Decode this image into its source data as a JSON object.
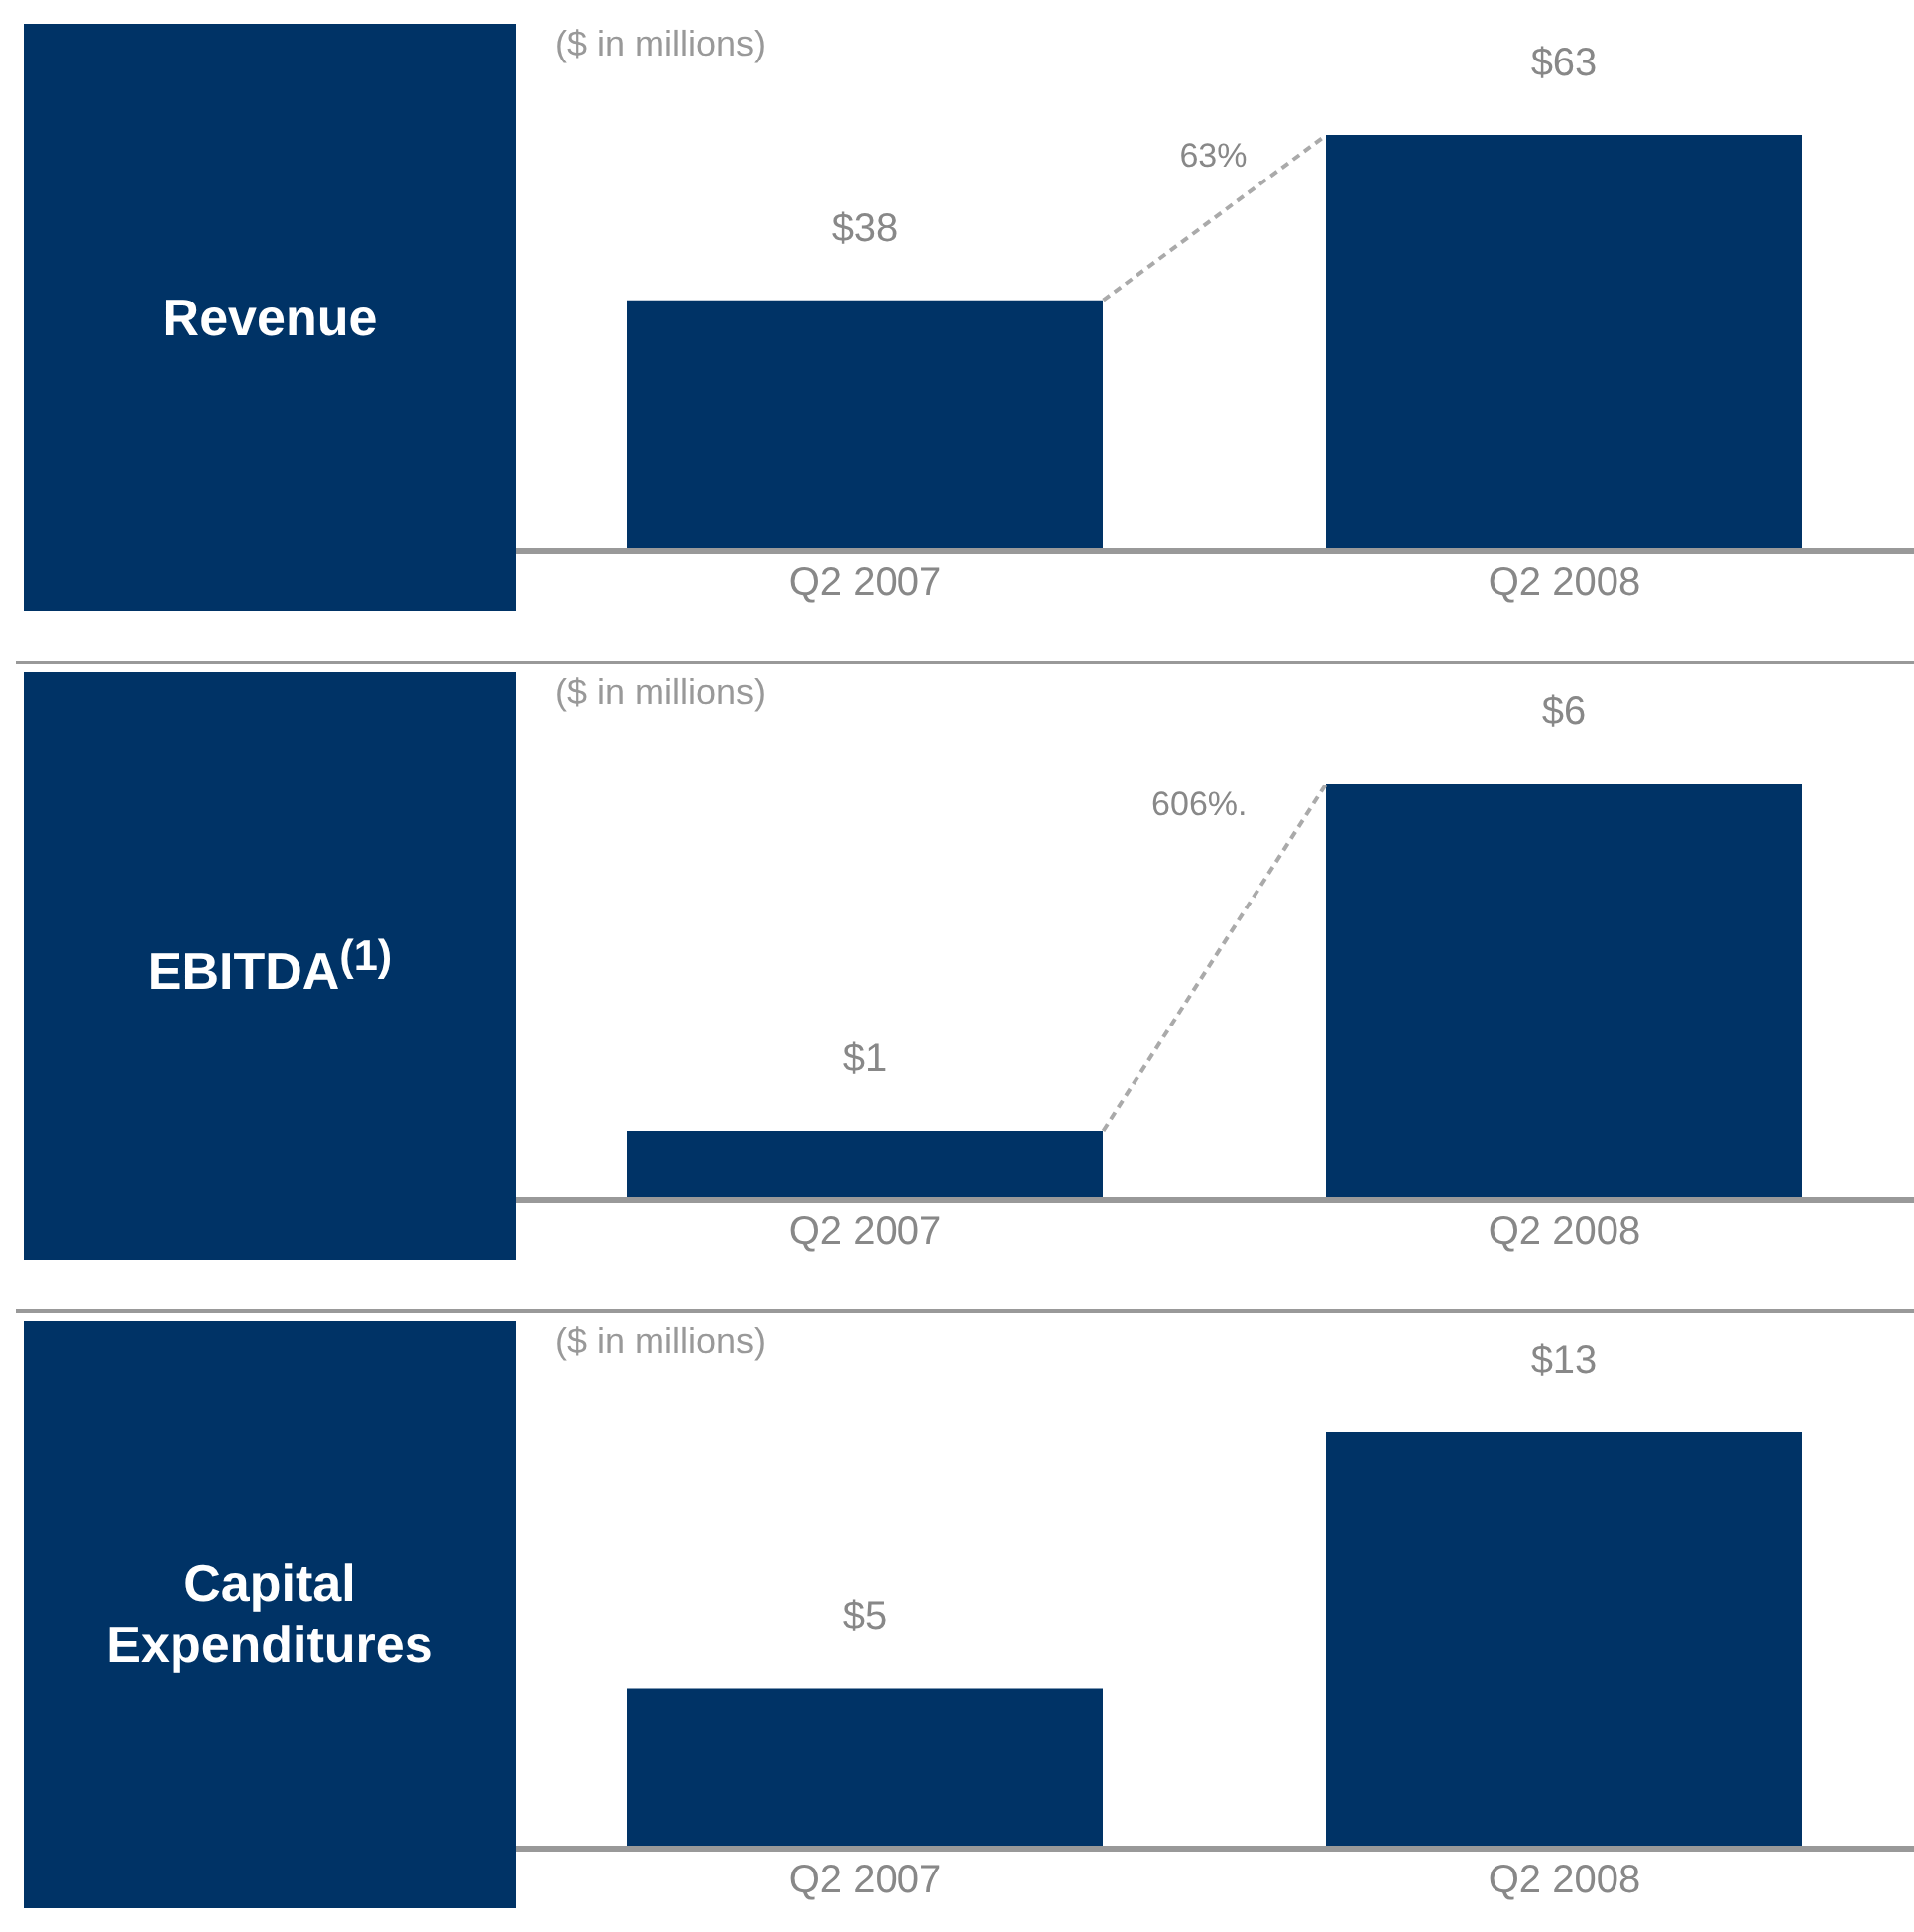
{
  "chart_data": [
    {
      "type": "bar",
      "title": "Revenue",
      "categories": [
        "Q2 2007",
        "Q2 2008"
      ],
      "values": [
        38,
        63
      ],
      "value_labels": [
        "$38",
        "$63"
      ],
      "color": "#003366",
      "annotations": [
        "($ in millions)",
        "63%"
      ]
    },
    {
      "type": "bar",
      "title": "EBITDA$^{(1)}$",
      "categories": [
        "Q2 2007",
        "Q2 2008"
      ],
      "values": [
        1,
        6
      ],
      "value_labels": [
        "$1",
        "$6"
      ],
      "color": "#003366",
      "annotations": [
        "($ in millions)",
        "606%."
      ]
    },
    {
      "type": "bar",
      "title": "Capital Expenditures",
      "categories": [
        "Q2 2007",
        "Q2 2008"
      ],
      "values": [
        5,
        13
      ],
      "value_labels": [
        "$5",
        "$13"
      ],
      "color": "#003366",
      "annotations": [
        "($ in millions)"
      ]
    }
  ]
}
